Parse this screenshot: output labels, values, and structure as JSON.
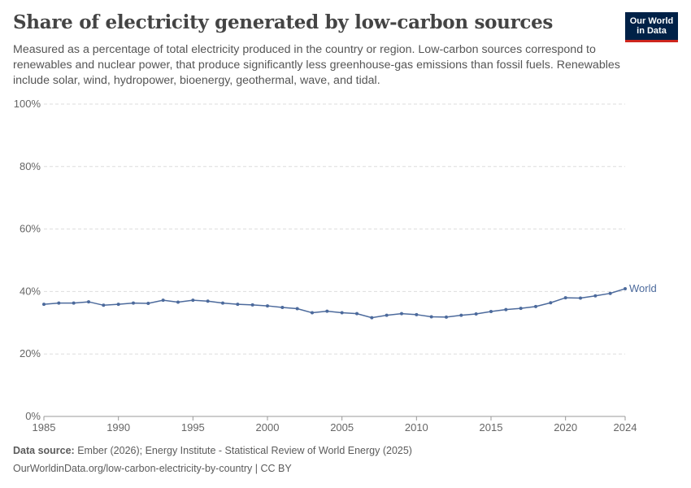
{
  "header": {
    "title": "Share of electricity generated by low-carbon sources",
    "subtitle": "Measured as a percentage of total electricity produced in the country or region. Low-carbon sources correspond to renewables and nuclear power, that produce significantly less greenhouse-gas emissions than fossil fuels. Renewables include solar, wind, hydropower, bioenergy, geothermal, wave, and tidal.",
    "logo": "Our World in Data"
  },
  "footer": {
    "source_label": "Data source:",
    "source": "Ember (2026); Energy Institute - Statistical Review of World Energy (2025)",
    "url": "OurWorldinData.org/low-carbon-electricity-by-country | CC BY"
  },
  "chart_data": {
    "type": "line",
    "title": "Share of electricity generated by low-carbon sources",
    "xlim": [
      1985,
      2024
    ],
    "ylim": [
      0,
      100
    ],
    "grid": true,
    "legend": "inline-right",
    "xticks": [
      "1985",
      "1990",
      "1995",
      "2000",
      "2005",
      "2010",
      "2015",
      "2020",
      "2024"
    ],
    "yticks": [
      "0%",
      "20%",
      "40%",
      "60%",
      "80%",
      "100%"
    ],
    "x": [
      1985,
      1986,
      1987,
      1988,
      1989,
      1990,
      1991,
      1992,
      1993,
      1994,
      1995,
      1996,
      1997,
      1998,
      1999,
      2000,
      2001,
      2002,
      2003,
      2004,
      2005,
      2006,
      2007,
      2008,
      2009,
      2010,
      2011,
      2012,
      2013,
      2014,
      2015,
      2016,
      2017,
      2018,
      2019,
      2020,
      2021,
      2022,
      2023,
      2024
    ],
    "series": [
      {
        "name": "World",
        "color": "#4c6a9c",
        "values": [
          35.9,
          36.3,
          36.3,
          36.7,
          35.6,
          35.9,
          36.3,
          36.2,
          37.2,
          36.6,
          37.2,
          36.9,
          36.3,
          35.9,
          35.7,
          35.4,
          34.9,
          34.5,
          33.2,
          33.7,
          33.2,
          32.9,
          31.6,
          32.4,
          32.9,
          32.6,
          31.9,
          31.8,
          32.4,
          32.8,
          33.6,
          34.2,
          34.6,
          35.2,
          36.4,
          38.0,
          37.9,
          38.6,
          39.4,
          40.9
        ]
      }
    ]
  }
}
